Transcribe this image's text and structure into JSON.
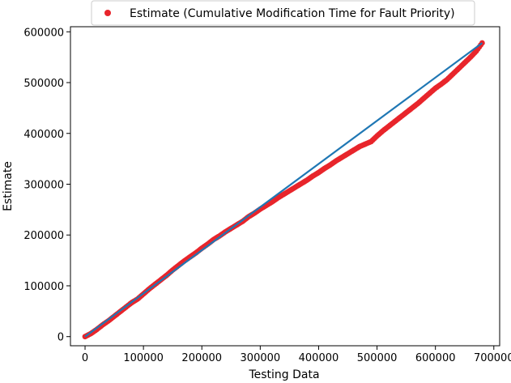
{
  "chart_data": {
    "type": "scatter",
    "xlabel": "Testing Data",
    "ylabel": "Estimate",
    "xlim": [
      -25000,
      710000
    ],
    "ylim": [
      -18000,
      610000
    ],
    "xticks": [
      0,
      100000,
      200000,
      300000,
      400000,
      500000,
      600000,
      700000
    ],
    "yticks": [
      0,
      100000,
      200000,
      300000,
      400000,
      500000,
      600000
    ],
    "grid": false,
    "legend_position": "top",
    "series": [
      {
        "name": "Estimate (Cumulative Modification Time for Fault Priority)",
        "kind": "scatter",
        "color": "#e8252b",
        "x": [
          0,
          10000,
          20000,
          30000,
          40000,
          50000,
          60000,
          70000,
          80000,
          90000,
          100000,
          110000,
          120000,
          130000,
          140000,
          150000,
          160000,
          170000,
          180000,
          190000,
          200000,
          210000,
          220000,
          230000,
          240000,
          250000,
          260000,
          270000,
          280000,
          290000,
          300000,
          310000,
          320000,
          330000,
          340000,
          350000,
          360000,
          370000,
          380000,
          390000,
          400000,
          410000,
          420000,
          430000,
          440000,
          450000,
          460000,
          470000,
          480000,
          490000,
          500000,
          510000,
          520000,
          530000,
          540000,
          550000,
          560000,
          570000,
          580000,
          590000,
          600000,
          610000,
          620000,
          630000,
          640000,
          650000,
          660000,
          670000,
          680000
        ],
        "y": [
          0,
          6000,
          14000,
          23000,
          31000,
          40000,
          49000,
          58000,
          67000,
          74000,
          84000,
          94000,
          103000,
          112000,
          121000,
          131000,
          140000,
          149000,
          157000,
          165000,
          174000,
          182000,
          191000,
          198000,
          206000,
          213000,
          220000,
          227000,
          236000,
          243000,
          251000,
          258000,
          265000,
          273000,
          280000,
          287000,
          294000,
          301000,
          308000,
          316000,
          323000,
          331000,
          338000,
          346000,
          353000,
          360000,
          367000,
          374000,
          379000,
          384000,
          395000,
          405000,
          414000,
          423000,
          432000,
          441000,
          450000,
          459000,
          469000,
          479000,
          489000,
          497000,
          506000,
          517000,
          528000,
          539000,
          550000,
          562000,
          578000
        ]
      },
      {
        "kind": "line",
        "color": "#1f77b4",
        "x": [
          0,
          680000
        ],
        "y": [
          0,
          578000
        ]
      }
    ]
  }
}
